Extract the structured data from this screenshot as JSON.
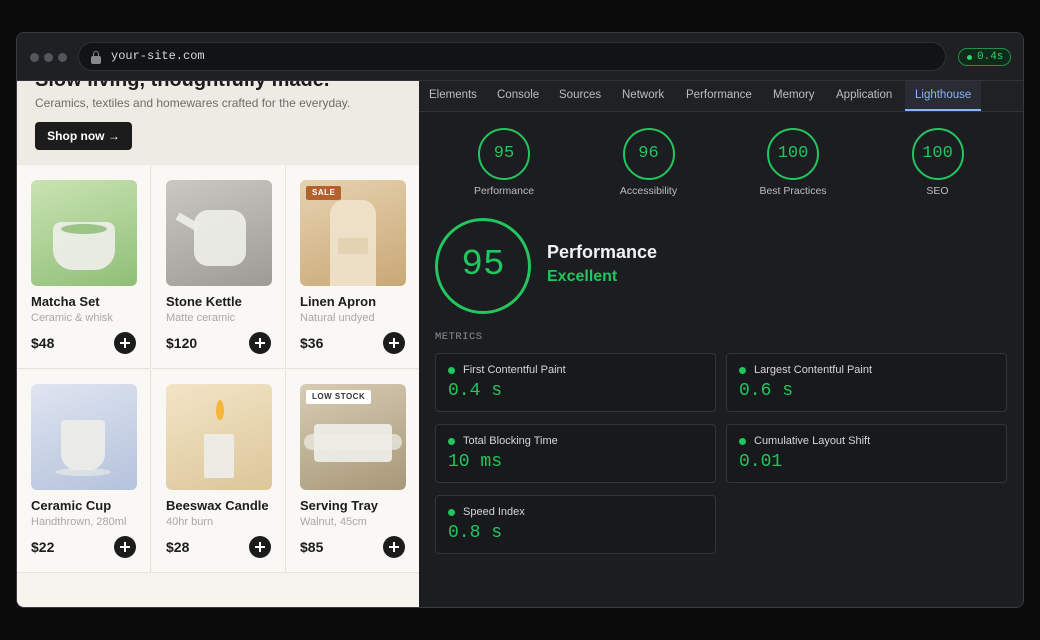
{
  "browser": {
    "url": "your-site.com",
    "load_badge": "0.4s"
  },
  "site": {
    "hero": {
      "title": "Slow living, thoughtfully made.",
      "subtitle": "Ceramics, textiles and homewares crafted for the everyday.",
      "button": "Shop now →"
    },
    "products": [
      {
        "name": "Matcha Set",
        "detail": "Ceramic & whisk",
        "price": "$48"
      },
      {
        "name": "Stone Kettle",
        "detail": "Matte ceramic",
        "price": "$120"
      },
      {
        "name": "Linen Apron",
        "detail": "Natural undyed",
        "price": "$36",
        "badge": "SALE"
      },
      {
        "name": "Ceramic Cup",
        "detail": "Handthrown, 280ml",
        "price": "$22"
      },
      {
        "name": "Beeswax Candle",
        "detail": "40hr burn",
        "price": "$28"
      },
      {
        "name": "Serving Tray",
        "detail": "Walnut, 45cm",
        "price": "$85",
        "badge": "LOW STOCK"
      }
    ]
  },
  "devtools": {
    "tabs": [
      "Elements",
      "Console",
      "Sources",
      "Network",
      "Performance",
      "Memory",
      "Application",
      "Lighthouse"
    ],
    "active_tab": 7,
    "scores": [
      {
        "value": 95,
        "label": "Performance"
      },
      {
        "value": 96,
        "label": "Accessibility"
      },
      {
        "value": 100,
        "label": "Best Practices"
      },
      {
        "value": 100,
        "label": "SEO"
      }
    ],
    "summary": {
      "score": 95,
      "title": "Performance",
      "rating": "Excellent"
    },
    "metrics_heading": "METRICS",
    "metrics": [
      {
        "label": "First Contentful Paint",
        "value": "0.4 s"
      },
      {
        "label": "Largest Contentful Paint",
        "value": "0.6 s"
      },
      {
        "label": "Total Blocking Time",
        "value": "10 ms"
      },
      {
        "label": "Cumulative Layout Shift",
        "value": "0.01"
      },
      {
        "label": "Speed Index",
        "value": "0.8 s"
      }
    ]
  }
}
